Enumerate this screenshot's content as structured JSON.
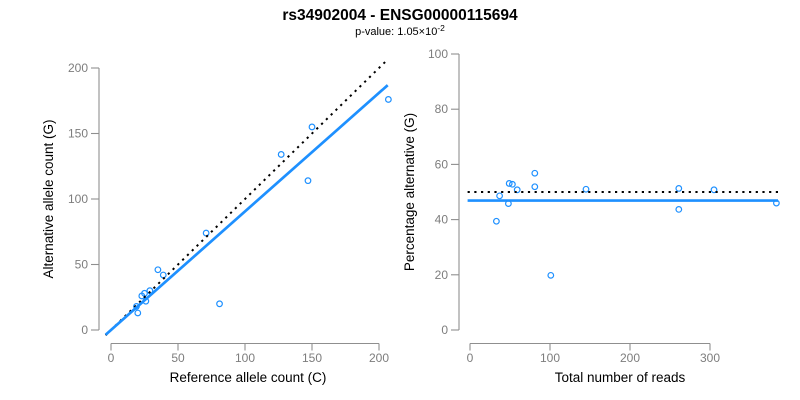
{
  "header": {
    "title": "rs34902004 - ENSG00000115694",
    "pvalue_text": "p-value: 1.05×10",
    "pvalue_exponent": "-2"
  },
  "colors": {
    "point_blue": "#1E90FF",
    "line_blue": "#1E90FF",
    "dotted_black": "#000000",
    "axis_line": "#8f8f8f",
    "tick_label": "#7d7d7d",
    "axis_title": "#404040",
    "title": "#000000",
    "subtitle": "#9a9a9a"
  },
  "chart_data": [
    {
      "id": "allele-count-scatter",
      "type": "scatter",
      "xlabel": "Reference allele count (C)",
      "ylabel": "Alternative allele count (G)",
      "xticks": [
        0,
        50,
        100,
        150,
        200
      ],
      "yticks": [
        0,
        50,
        100,
        150,
        200
      ],
      "xlim": [
        0,
        207
      ],
      "ylim": [
        0,
        206
      ],
      "grid": false,
      "legend": "none",
      "points": [
        [
          20,
          13
        ],
        [
          19,
          18
        ],
        [
          23,
          26
        ],
        [
          26,
          22
        ],
        [
          25,
          28
        ],
        [
          29,
          30
        ],
        [
          35,
          46
        ],
        [
          39,
          42
        ],
        [
          71,
          74
        ],
        [
          81,
          20
        ],
        [
          127,
          134
        ],
        [
          147,
          114
        ],
        [
          150,
          155
        ],
        [
          207,
          176
        ]
      ],
      "lines": [
        {
          "name": "identity-line",
          "slope": 1,
          "intercept": 0,
          "style": "dotted",
          "color_role": "dotted_black"
        },
        {
          "name": "regression-line",
          "slope": 0.905,
          "intercept": 0,
          "style": "solid",
          "color_role": "line_blue"
        }
      ]
    },
    {
      "id": "percentage-alternative-scatter",
      "type": "scatter",
      "xlabel": "Total number of reads",
      "ylabel": "Percentage alternative (G)",
      "xticks": [
        0,
        100,
        200,
        300
      ],
      "yticks": [
        0,
        20,
        40,
        60,
        80,
        100
      ],
      "xlim": [
        0,
        385
      ],
      "ylim": [
        0,
        100
      ],
      "grid": false,
      "legend": "none",
      "points": [
        [
          33,
          39.4
        ],
        [
          37,
          48.6
        ],
        [
          49,
          53.1
        ],
        [
          48,
          45.8
        ],
        [
          53,
          52.8
        ],
        [
          59,
          50.8
        ],
        [
          81,
          56.8
        ],
        [
          81,
          51.9
        ],
        [
          145,
          51.0
        ],
        [
          101,
          19.8
        ],
        [
          261,
          51.3
        ],
        [
          261,
          43.7
        ],
        [
          305,
          50.8
        ],
        [
          383,
          46.0
        ]
      ],
      "lines": [
        {
          "name": "expected-50pct-line",
          "slope": 0,
          "intercept": 50,
          "style": "dotted",
          "color_role": "dotted_black"
        },
        {
          "name": "regression-line",
          "slope": 0,
          "intercept": 46.9,
          "style": "solid",
          "color_role": "line_blue"
        }
      ]
    }
  ]
}
